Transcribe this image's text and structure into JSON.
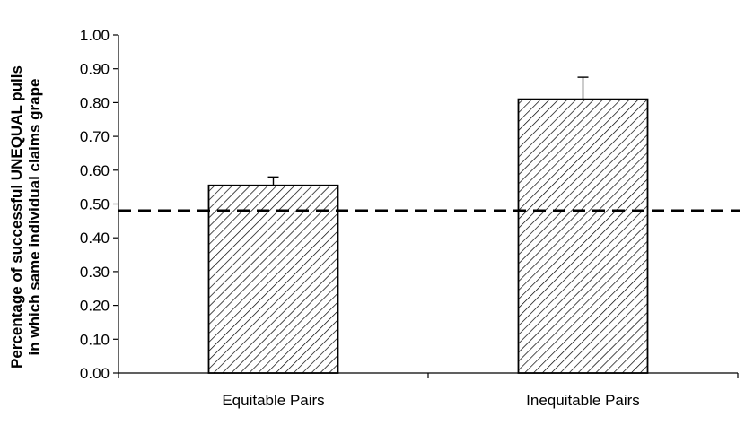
{
  "chart_data": {
    "type": "bar",
    "title": "",
    "xlabel": "",
    "ylabel_lines": [
      "Percentage of successful UNEQUAL pulls",
      "in which same individual claims grape"
    ],
    "categories": [
      "Equitable Pairs",
      "Inequitable Pairs"
    ],
    "series": [
      {
        "values": [
          0.555,
          0.81
        ],
        "error_plus": [
          0.025,
          0.065
        ]
      }
    ],
    "ylim": [
      0,
      1.0
    ],
    "yticks": [
      "0.00",
      "0.10",
      "0.20",
      "0.30",
      "0.40",
      "0.50",
      "0.60",
      "0.70",
      "0.80",
      "0.90",
      "1.00"
    ],
    "reference_line": {
      "value": 0.48,
      "style": "dashed"
    },
    "bar_fill": "hatched",
    "colors": {
      "bar_stroke": "#000000",
      "hatch": "#000000",
      "background": "#ffffff"
    },
    "grid": false,
    "legend": "none"
  }
}
